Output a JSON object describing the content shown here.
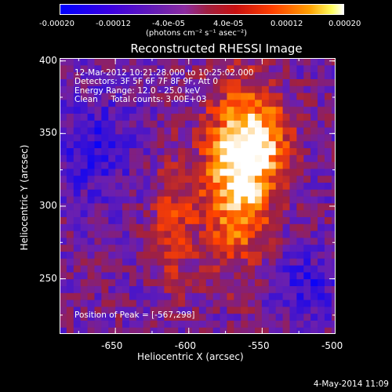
{
  "colorbar": {
    "ticks": [
      "-0.00020",
      "-0.00012",
      "-4.0e-05",
      "4.0e-05",
      "0.00012",
      "0.00020"
    ],
    "units": "(photons cm⁻² s⁻¹ asec⁻²)",
    "colors": [
      "#0000ff",
      "#6a1fb0",
      "#a02040",
      "#ff4000",
      "#ffa000",
      "#ffffff"
    ]
  },
  "chart_data": {
    "type": "heatmap",
    "title": "Reconstructed RHESSI Image",
    "xlabel": "Heliocentric X (arcsec)",
    "ylabel": "Heliocentric Y (arcsec)",
    "xlim": [
      -688,
      -500
    ],
    "ylim": [
      212,
      402
    ],
    "x_ticks": [
      "-650",
      "-600",
      "-550",
      "-500"
    ],
    "y_ticks": [
      "250",
      "300",
      "350",
      "400"
    ],
    "x_tick_values": [
      -650,
      -600,
      -550,
      -500
    ],
    "y_tick_values": [
      250,
      300,
      350,
      400
    ],
    "colorbar_range": [
      -0.0002,
      0.0002
    ],
    "peak": [
      -567,
      298
    ],
    "annotations": [
      "12-Mar-2012 10:21:28.000 to 10:25:02.000",
      "Detectors: 3F 5F 6F 7F 8F 9F, Att 0",
      "Energy Range: 12.0 - 25.0 keV",
      "Clean     Total counts: 3.00E+03"
    ],
    "peak_label": "Position of Peak = [-567,298]"
  },
  "footer": {
    "timestamp": "4-May-2014 11:09"
  }
}
